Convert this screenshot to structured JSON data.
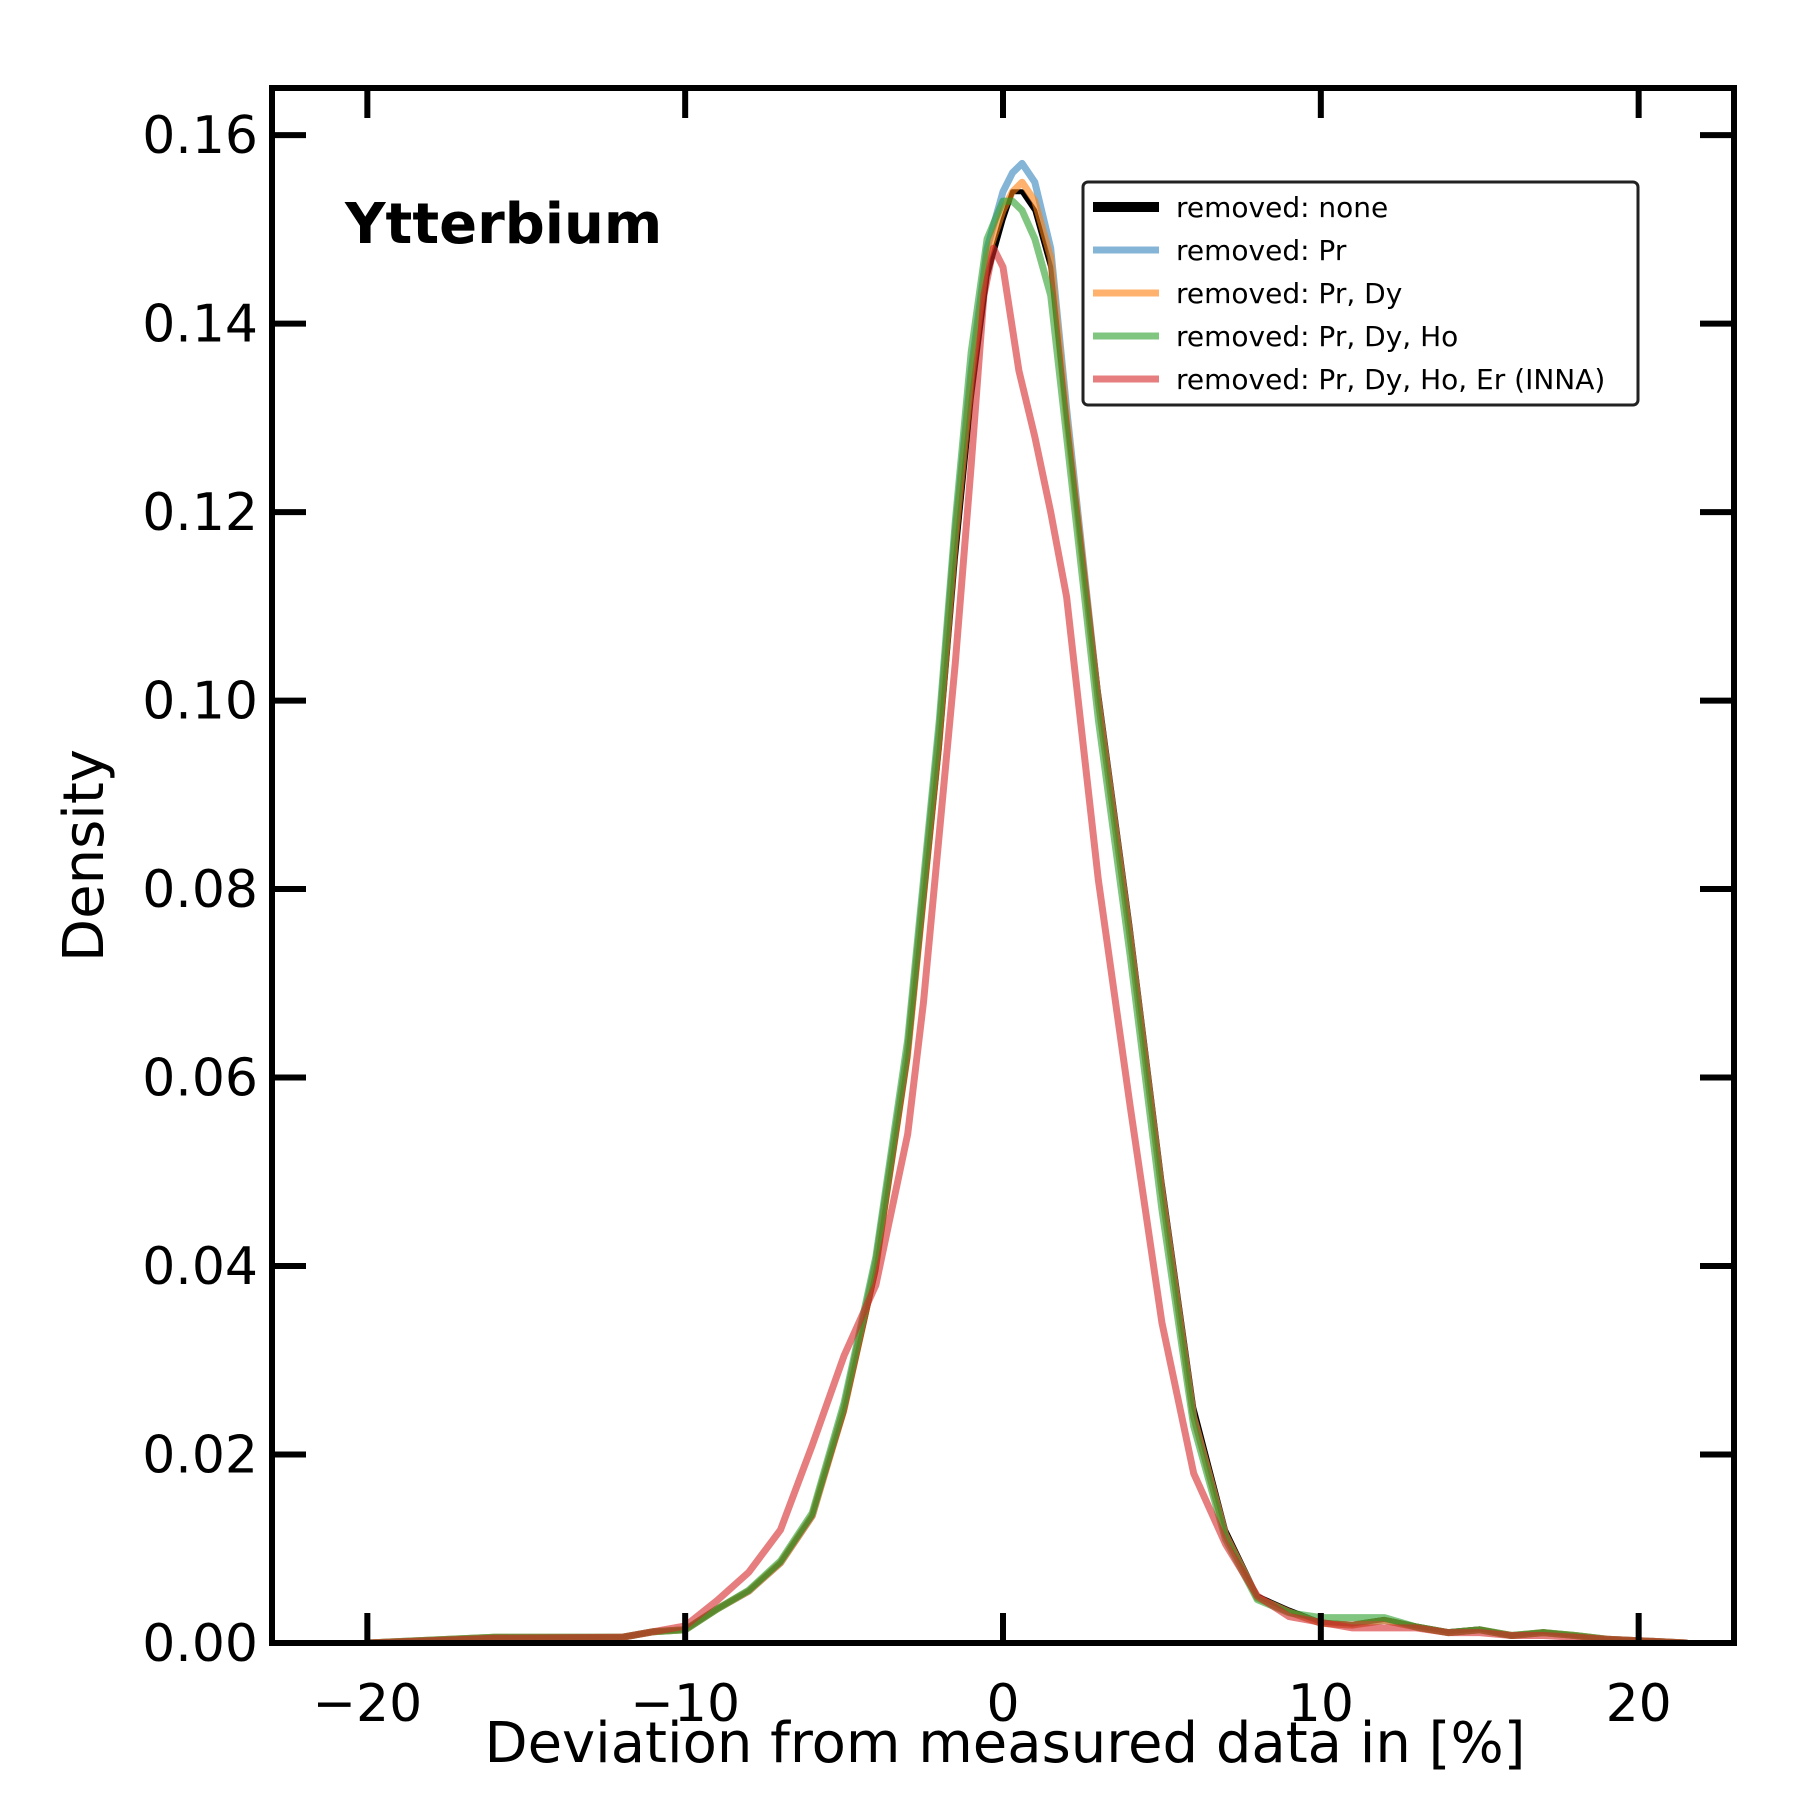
{
  "chart_data": {
    "type": "line",
    "title": "",
    "annotation": "Ytterbium",
    "xlabel": "Deviation from measured data in [%]",
    "ylabel": "Density",
    "xlim": [
      -23,
      23
    ],
    "ylim": [
      0,
      0.165
    ],
    "xticks": [
      -20,
      -10,
      0,
      10,
      20
    ],
    "xtick_labels": [
      "−20",
      "−10",
      "0",
      "10",
      "20"
    ],
    "yticks": [
      0,
      0.02,
      0.04,
      0.06,
      0.08,
      0.1,
      0.12,
      0.14,
      0.16
    ],
    "ytick_labels": [
      "0.00",
      "0.02",
      "0.04",
      "0.06",
      "0.08",
      "0.10",
      "0.12",
      "0.14",
      "0.16"
    ],
    "grid": false,
    "legend_position": "top-right",
    "series": [
      {
        "name": "removed: none",
        "color": "#000000",
        "opacity": 1.0,
        "x": [
          -20,
          -16,
          -12,
          -11,
          -10,
          -9,
          -8,
          -7,
          -6,
          -5,
          -4,
          -3,
          -2,
          -1.5,
          -1,
          -0.5,
          0,
          0.3,
          0.6,
          1,
          1.5,
          2,
          3,
          4,
          5,
          6,
          7,
          8,
          9,
          10,
          11,
          12,
          13,
          14,
          15,
          16,
          17,
          18,
          19,
          21.5
        ],
        "y": [
          0.0,
          0.0006,
          0.0006,
          0.0012,
          0.0014,
          0.0036,
          0.0055,
          0.0085,
          0.0135,
          0.0245,
          0.0395,
          0.062,
          0.095,
          0.115,
          0.132,
          0.145,
          0.151,
          0.154,
          0.154,
          0.152,
          0.146,
          0.13,
          0.101,
          0.076,
          0.049,
          0.025,
          0.012,
          0.005,
          0.0035,
          0.0022,
          0.002,
          0.0025,
          0.0018,
          0.0012,
          0.0015,
          0.0008,
          0.0012,
          0.0008,
          0.0004,
          0.0
        ]
      },
      {
        "name": "removed: Pr",
        "color": "#1f77b4",
        "opacity": 0.55,
        "x": [
          -20,
          -16,
          -12,
          -11,
          -10,
          -9,
          -8,
          -7,
          -6,
          -5,
          -4,
          -3,
          -2,
          -1.5,
          -1,
          -0.5,
          0,
          0.3,
          0.6,
          1,
          1.5,
          2,
          3,
          4,
          5,
          6,
          7,
          8,
          9,
          10,
          11,
          12,
          13,
          14,
          15,
          16,
          17,
          18,
          19,
          21.5
        ],
        "y": [
          0.0,
          0.0006,
          0.0006,
          0.0012,
          0.0014,
          0.0036,
          0.0055,
          0.0085,
          0.0135,
          0.025,
          0.0405,
          0.063,
          0.097,
          0.118,
          0.135,
          0.148,
          0.154,
          0.156,
          0.157,
          0.155,
          0.148,
          0.131,
          0.1,
          0.075,
          0.048,
          0.024,
          0.0115,
          0.0048,
          0.0033,
          0.0021,
          0.0019,
          0.0024,
          0.0017,
          0.0011,
          0.0014,
          0.0008,
          0.0011,
          0.0008,
          0.0004,
          0.0
        ]
      },
      {
        "name": "removed: Pr, Dy",
        "color": "#ff7f0e",
        "opacity": 0.6,
        "x": [
          -20,
          -16,
          -12,
          -11,
          -10,
          -9,
          -8,
          -7,
          -6,
          -5,
          -4,
          -3,
          -2,
          -1.5,
          -1,
          -0.5,
          0,
          0.3,
          0.6,
          1,
          1.5,
          2,
          3,
          4,
          5,
          6,
          7,
          8,
          9,
          10,
          11,
          12,
          13,
          14,
          15,
          16,
          17,
          18,
          19,
          21.5
        ],
        "y": [
          0.0,
          0.0006,
          0.0006,
          0.0012,
          0.0014,
          0.0036,
          0.0055,
          0.0085,
          0.0135,
          0.0248,
          0.04,
          0.0625,
          0.096,
          0.117,
          0.134,
          0.147,
          0.152,
          0.154,
          0.155,
          0.153,
          0.147,
          0.13,
          0.1,
          0.075,
          0.048,
          0.024,
          0.0115,
          0.0048,
          0.0033,
          0.0021,
          0.0019,
          0.0024,
          0.0017,
          0.0011,
          0.0014,
          0.0008,
          0.0011,
          0.0008,
          0.0004,
          0.0
        ]
      },
      {
        "name": "removed: Pr, Dy, Ho",
        "color": "#2ca02c",
        "opacity": 0.6,
        "x": [
          -20,
          -16,
          -12,
          -11,
          -10,
          -9,
          -8,
          -7,
          -6,
          -5,
          -4,
          -3,
          -2,
          -1.5,
          -1,
          -0.5,
          0,
          0.3,
          0.6,
          1,
          1.5,
          2,
          3,
          4,
          5,
          6,
          7,
          8,
          9,
          10,
          11,
          12,
          13,
          14,
          15,
          16,
          17,
          18,
          19,
          21.5
        ],
        "y": [
          0.0,
          0.0006,
          0.0006,
          0.0012,
          0.0014,
          0.0036,
          0.0056,
          0.0087,
          0.0138,
          0.0255,
          0.041,
          0.064,
          0.098,
          0.119,
          0.137,
          0.149,
          0.153,
          0.153,
          0.152,
          0.149,
          0.143,
          0.128,
          0.098,
          0.073,
          0.046,
          0.023,
          0.011,
          0.0046,
          0.0032,
          0.0027,
          0.0027,
          0.0027,
          0.0017,
          0.0011,
          0.0014,
          0.0008,
          0.0011,
          0.0008,
          0.0004,
          0.0
        ]
      },
      {
        "name": "removed: Pr, Dy, Ho, Er (INNA)",
        "color": "#d62728",
        "opacity": 0.6,
        "x": [
          -20,
          -16,
          -12,
          -11,
          -10,
          -9,
          -8,
          -7,
          -6,
          -5,
          -4,
          -3,
          -2.5,
          -2,
          -1.5,
          -1,
          -0.6,
          -0.3,
          0,
          0.5,
          1,
          1.5,
          2,
          3,
          4,
          5,
          6,
          7,
          8,
          9,
          10,
          11,
          12,
          13,
          14,
          15,
          16,
          17,
          18,
          19,
          21.5
        ],
        "y": [
          0.0,
          0.0005,
          0.0006,
          0.0012,
          0.0018,
          0.0045,
          0.0075,
          0.012,
          0.021,
          0.0305,
          0.038,
          0.054,
          0.068,
          0.086,
          0.104,
          0.125,
          0.143,
          0.148,
          0.146,
          0.135,
          0.128,
          0.12,
          0.111,
          0.081,
          0.057,
          0.034,
          0.018,
          0.0105,
          0.005,
          0.0028,
          0.0022,
          0.0016,
          0.0016,
          0.0016,
          0.0011,
          0.0011,
          0.0008,
          0.0008,
          0.0006,
          0.0004,
          0.0
        ]
      }
    ]
  }
}
